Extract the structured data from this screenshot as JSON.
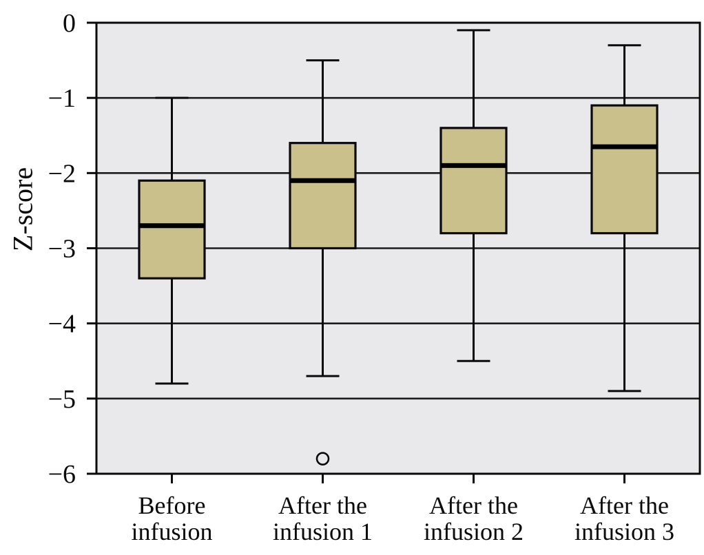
{
  "chart_data": {
    "type": "boxplot",
    "title": "",
    "xlabel": "",
    "ylabel": "Z-score",
    "ylim": [
      -6,
      0
    ],
    "grid": true,
    "legend": false,
    "y_ticks": [
      0,
      -1,
      -2,
      -3,
      -4,
      -5,
      -6
    ],
    "y_tick_labels": [
      "0",
      "−1",
      "−2",
      "−3",
      "−4",
      "−5",
      "−6"
    ],
    "categories": [
      "Before infusion",
      "After the infusion 1",
      "After the infusion 2",
      "After the infusion 3"
    ],
    "category_label_lines": [
      [
        "Before",
        "infusion"
      ],
      [
        "After the",
        "infusion 1"
      ],
      [
        "After the",
        "infusion 2"
      ],
      [
        "After the",
        "infusion 3"
      ]
    ],
    "series": [
      {
        "name": "Before infusion",
        "whisker_low": -4.8,
        "q1": -3.4,
        "median": -2.7,
        "q3": -2.1,
        "whisker_high": -1.0,
        "outliers": []
      },
      {
        "name": "After the infusion 1",
        "whisker_low": -4.7,
        "q1": -3.0,
        "median": -2.1,
        "q3": -1.6,
        "whisker_high": -0.5,
        "outliers": [
          -5.8
        ]
      },
      {
        "name": "After the infusion 2",
        "whisker_low": -4.5,
        "q1": -2.8,
        "median": -1.9,
        "q3": -1.4,
        "whisker_high": -0.1,
        "outliers": []
      },
      {
        "name": "After the infusion 3",
        "whisker_low": -4.9,
        "q1": -2.8,
        "median": -1.65,
        "q3": -1.1,
        "whisker_high": -0.3,
        "outliers": []
      }
    ],
    "colors": {
      "box_fill": "#c9c08b",
      "box_stroke": "#0a0a0a",
      "median_line": "#000000",
      "whisker": "#0a0a0a",
      "gridline": "#1c1c1c",
      "axis": "#0a0a0a",
      "plot_background": "#e9e9eb",
      "page_background": "#ffffff",
      "tick_text": "#0a0a0a"
    }
  }
}
